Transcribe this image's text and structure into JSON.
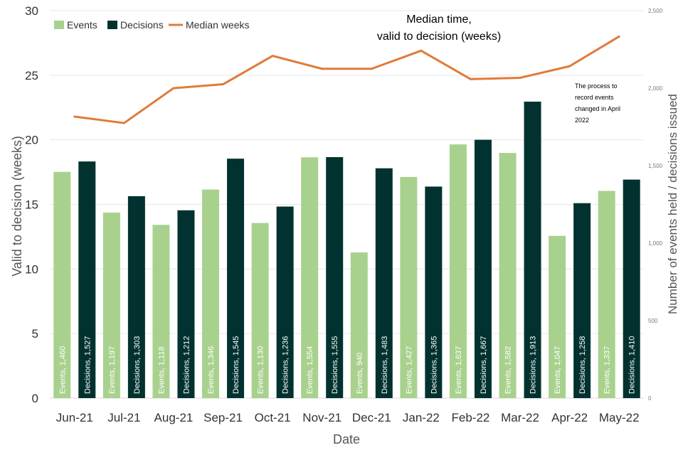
{
  "chart_data": {
    "type": "bar+line",
    "title_lines": [
      "Median time,",
      "valid to decision (weeks)"
    ],
    "xlabel": "Date",
    "ylabel": "Valid to decision (weeks)",
    "y2label": "Number of events held / decisions issued",
    "categories": [
      "Jun-21",
      "Jul-21",
      "Aug-21",
      "Sep-21",
      "Oct-21",
      "Nov-21",
      "Dec-21",
      "Jan-22",
      "Feb-22",
      "Mar-22",
      "Apr-22",
      "May-22"
    ],
    "y_ticks": [
      "0",
      "5",
      "10",
      "15",
      "20",
      "25",
      "30"
    ],
    "y_lim": [
      0,
      30
    ],
    "y2_ticks": [
      "0",
      "500",
      "1,000",
      "1,500",
      "2,000",
      "2,500"
    ],
    "y2_lim": [
      0,
      2500
    ],
    "legend": {
      "events": "Events",
      "decisions": "Decisions",
      "median": "Median weeks"
    },
    "series": [
      {
        "name": "Events",
        "axis": "right",
        "color": "#a9d18e",
        "values": [
          1460,
          1197,
          1118,
          1346,
          1130,
          1554,
          940,
          1427,
          1637,
          1582,
          1047,
          1337
        ],
        "labels": [
          "Events, 1,460",
          "Events, 1,197",
          "Events, 1,118",
          "Events, 1,346",
          "Events, 1,130",
          "Events, 1,554",
          "Events, 940",
          "Events, 1,427",
          "Events, 1,637",
          "Events, 1,582",
          "Events, 1,047",
          "Events, 1,337"
        ]
      },
      {
        "name": "Decisions",
        "axis": "right",
        "color": "#01322f",
        "values": [
          1527,
          1303,
          1212,
          1545,
          1236,
          1555,
          1483,
          1365,
          1667,
          1913,
          1258,
          1410
        ],
        "labels": [
          "Decisions, 1,527",
          "Decisions, 1,303",
          "Decisions, 1,212",
          "Decisions, 1,545",
          "Decisions, 1,236",
          "Decisions, 1,555",
          "Decisions, 1,483",
          "Decisions, 1,365",
          "Decisions, 1,667",
          "Decisions, 1,913",
          "Decisions, 1,258",
          "Decisions, 1,410"
        ]
      },
      {
        "name": "Median weeks",
        "axis": "left",
        "color": "#e07b39",
        "values": [
          21.8,
          21.3,
          24.0,
          24.3,
          26.5,
          25.5,
          25.5,
          26.9,
          24.7,
          24.8,
          25.7,
          28.0
        ]
      }
    ],
    "annotation": [
      "The process to",
      "record events",
      "changed in April",
      "2022"
    ],
    "grid": true,
    "legend_position": "top-left"
  }
}
